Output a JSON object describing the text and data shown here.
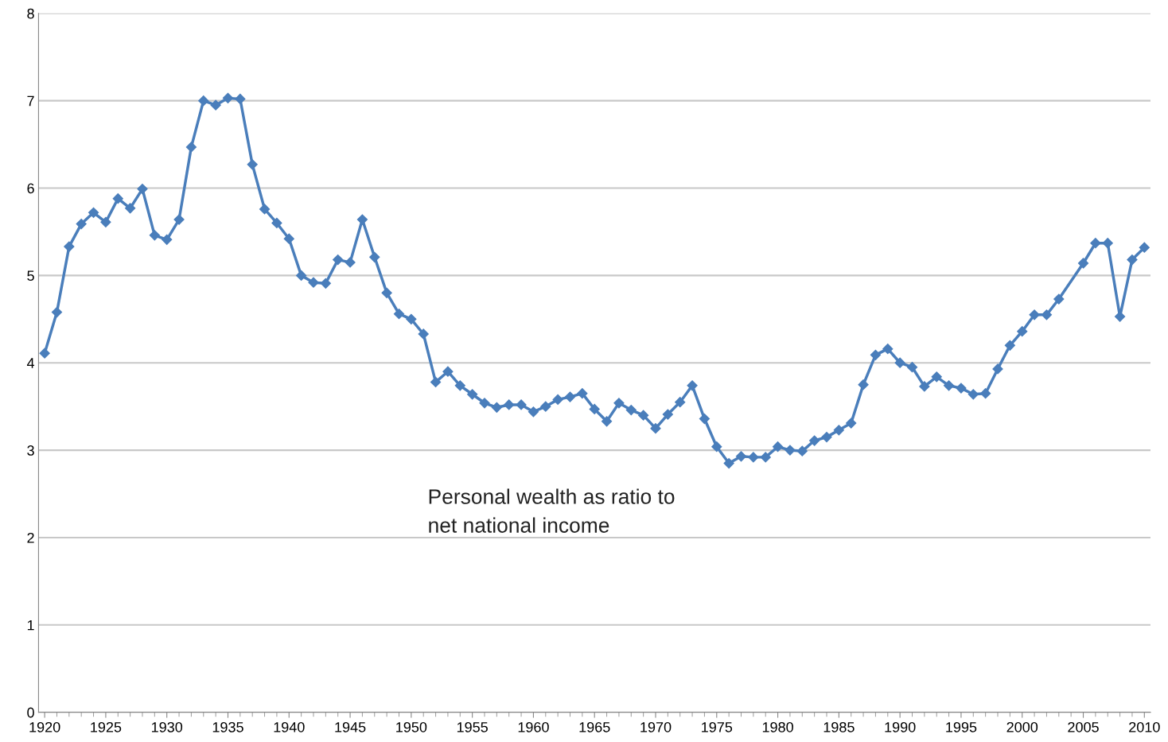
{
  "chart_data": {
    "type": "line",
    "x": [
      1920,
      1921,
      1922,
      1923,
      1924,
      1925,
      1926,
      1927,
      1928,
      1929,
      1930,
      1931,
      1932,
      1933,
      1934,
      1935,
      1936,
      1937,
      1938,
      1939,
      1940,
      1941,
      1942,
      1943,
      1944,
      1945,
      1946,
      1947,
      1948,
      1949,
      1950,
      1951,
      1952,
      1953,
      1954,
      1955,
      1956,
      1957,
      1958,
      1959,
      1960,
      1961,
      1962,
      1963,
      1964,
      1965,
      1966,
      1967,
      1968,
      1969,
      1970,
      1971,
      1972,
      1973,
      1974,
      1975,
      1976,
      1977,
      1978,
      1979,
      1980,
      1981,
      1982,
      1983,
      1984,
      1985,
      1986,
      1987,
      1988,
      1989,
      1990,
      1991,
      1992,
      1993,
      1994,
      1995,
      1996,
      1997,
      1998,
      1999,
      2000,
      2001,
      2002,
      2003,
      2005,
      2006,
      2007,
      2008,
      2009,
      2010
    ],
    "series": [
      {
        "color": "#4a7ebb",
        "values": [
          4.11,
          4.58,
          5.33,
          5.59,
          5.72,
          5.61,
          5.88,
          5.77,
          5.99,
          5.46,
          5.41,
          5.64,
          6.47,
          7.0,
          6.95,
          7.03,
          7.02,
          6.27,
          5.76,
          5.6,
          5.42,
          5.0,
          4.92,
          4.91,
          5.18,
          5.15,
          5.64,
          5.21,
          4.8,
          4.56,
          4.5,
          4.33,
          3.78,
          3.9,
          3.74,
          3.64,
          3.54,
          3.49,
          3.52,
          3.52,
          3.44,
          3.5,
          3.58,
          3.61,
          3.65,
          3.47,
          3.33,
          3.54,
          3.46,
          3.4,
          3.25,
          3.41,
          3.55,
          3.74,
          3.36,
          3.04,
          2.85,
          2.93,
          2.92,
          2.92,
          3.04,
          3.0,
          2.99,
          3.11,
          3.15,
          3.23,
          3.31,
          3.75,
          4.09,
          4.16,
          4.0,
          3.95,
          3.73,
          3.84,
          3.74,
          3.71,
          3.64,
          3.65,
          3.93,
          4.2,
          4.36,
          4.55,
          4.55,
          4.73,
          5.14,
          5.37,
          5.37,
          4.53,
          5.18,
          5.32
        ]
      }
    ],
    "xlim": [
      1919.5,
      2010.5
    ],
    "xticks": [
      1920,
      1925,
      1930,
      1935,
      1940,
      1945,
      1950,
      1955,
      1960,
      1965,
      1970,
      1975,
      1980,
      1985,
      1990,
      1995,
      2000,
      2005,
      2010
    ],
    "ylim": [
      0,
      8
    ],
    "yticks": [
      0,
      1,
      2,
      3,
      4,
      5,
      6,
      7,
      8
    ],
    "grid": "y",
    "marker": "diamond",
    "line_style": "solid",
    "annotations": [
      "Personal wealth as ratio to\nnet national income"
    ]
  }
}
